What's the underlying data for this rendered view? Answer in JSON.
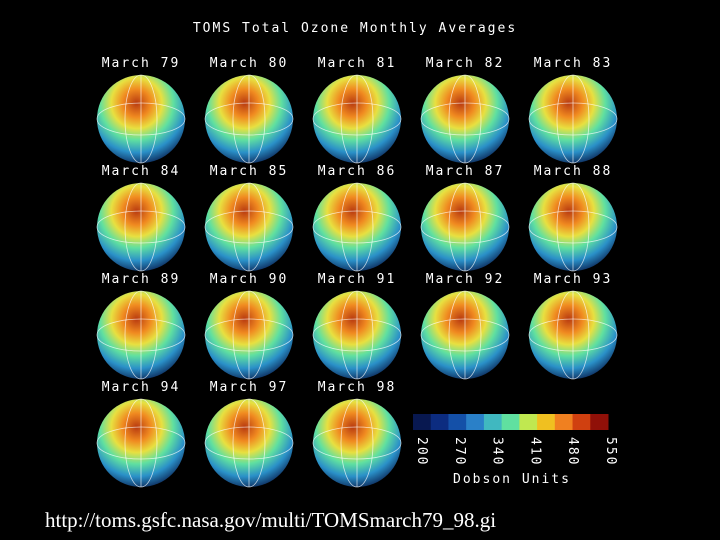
{
  "title": "TOMS Total Ozone Monthly Averages",
  "panels": [
    {
      "label": "March 79"
    },
    {
      "label": "March 80"
    },
    {
      "label": "March 81"
    },
    {
      "label": "March 82"
    },
    {
      "label": "March 83"
    },
    {
      "label": "March 84"
    },
    {
      "label": "March 85"
    },
    {
      "label": "March 86"
    },
    {
      "label": "March 87"
    },
    {
      "label": "March 88"
    },
    {
      "label": "March 89"
    },
    {
      "label": "March 90"
    },
    {
      "label": "March 91"
    },
    {
      "label": "March 92"
    },
    {
      "label": "March 93"
    },
    {
      "label": "March 94"
    },
    {
      "label": "March 97"
    },
    {
      "label": "March 98"
    }
  ],
  "colorbar": {
    "ticks": [
      "200",
      "270",
      "340",
      "410",
      "480",
      "550"
    ],
    "label": "Dobson Units"
  },
  "caption": "http://toms.gsfc.nasa.gov/multi/TOMSmarch79_98.gi"
}
